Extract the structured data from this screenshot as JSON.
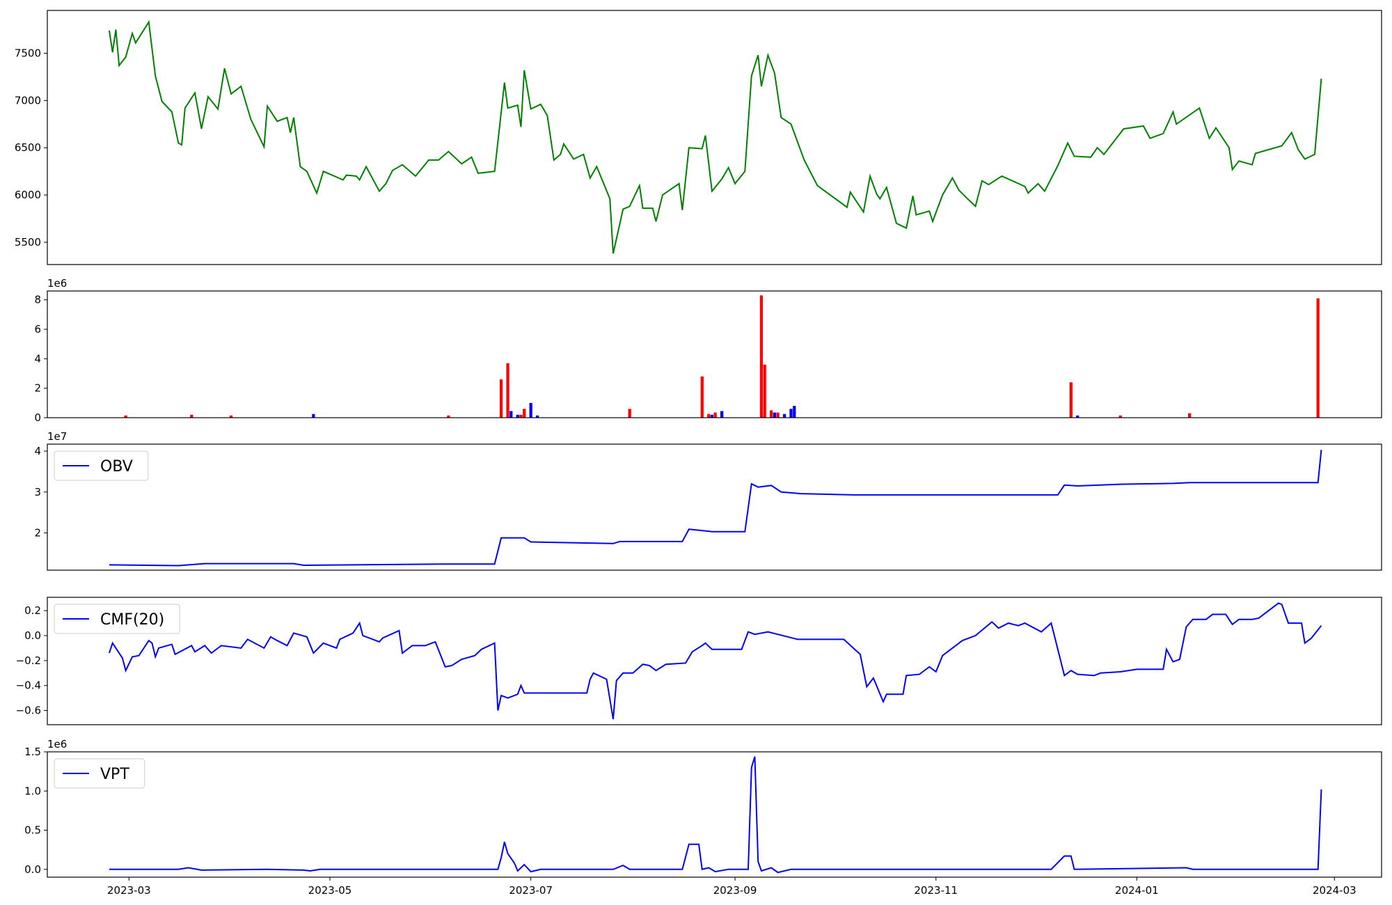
{
  "chart_data": [
    {
      "type": "line",
      "xlim": [
        -24.8,
        380.3
      ],
      "ylim": [
        5264,
        7953
      ],
      "yticks": [
        5500,
        6000,
        6500,
        7000,
        7500
      ],
      "grid": false,
      "x": [
        -6,
        -5,
        -4,
        -3,
        -1,
        1,
        2,
        6,
        8,
        10,
        13,
        15,
        16,
        17,
        20,
        22,
        24,
        27,
        29,
        31,
        34,
        37,
        41,
        42,
        45,
        48,
        49,
        50,
        52,
        54,
        57,
        59,
        65,
        66,
        69,
        70,
        72,
        76,
        78,
        80,
        83,
        87,
        91,
        94,
        97,
        101,
        104,
        106,
        111,
        114,
        115,
        118,
        119,
        120,
        122,
        125,
        127,
        129,
        131,
        132,
        135,
        138,
        140,
        142,
        146,
        147,
        150,
        152,
        155,
        156,
        159,
        160,
        162,
        167,
        168,
        170,
        174,
        175,
        177,
        180,
        182,
        184,
        187,
        189,
        191,
        192,
        194,
        196,
        198,
        201,
        205,
        209,
        218,
        219,
        223,
        225,
        227,
        228,
        230,
        233,
        236,
        238,
        239,
        243,
        244,
        247,
        250,
        252,
        254,
        257,
        259,
        261,
        265,
        272,
        273,
        276,
        278,
        282,
        285,
        287,
        292,
        294,
        296,
        302,
        308,
        310,
        314,
        317,
        318,
        325,
        328,
        330,
        334,
        335,
        337,
        341,
        342,
        350,
        353,
        355,
        357,
        360,
        362
      ],
      "series": [
        {
          "color": "#008000",
          "values": [
            7740,
            7510,
            7750,
            7370,
            7460,
            7710,
            7610,
            7830,
            7260,
            6990,
            6880,
            6550,
            6530,
            6920,
            7080,
            6700,
            7040,
            6910,
            7340,
            7070,
            7150,
            6800,
            6510,
            6940,
            6780,
            6820,
            6660,
            6820,
            6300,
            6250,
            6020,
            6250,
            6160,
            6210,
            6200,
            6160,
            6300,
            6040,
            6120,
            6260,
            6320,
            6200,
            6370,
            6370,
            6460,
            6330,
            6400,
            6230,
            6250,
            7190,
            6920,
            6950,
            6720,
            7320,
            6910,
            6960,
            6840,
            6370,
            6430,
            6540,
            6380,
            6430,
            6180,
            6300,
            5960,
            5380,
            5850,
            5880,
            6100,
            5860,
            5860,
            5720,
            6000,
            6120,
            5840,
            6500,
            6490,
            6630,
            6040,
            6170,
            6290,
            6120,
            6250,
            7260,
            7480,
            7150,
            7480,
            7290,
            6820,
            6750,
            6370,
            6100,
            5870,
            6030,
            5820,
            6200,
            6010,
            5960,
            6080,
            5700,
            5650,
            5990,
            5790,
            5830,
            5720,
            6000,
            6180,
            6050,
            5980,
            5880,
            6150,
            6110,
            6200,
            6090,
            6020,
            6120,
            6040,
            6310,
            6550,
            6410,
            6400,
            6500,
            6430,
            6700,
            6730,
            6600,
            6650,
            6880,
            6750,
            6920,
            6600,
            6710,
            6500,
            6270,
            6360,
            6320,
            6440,
            6520,
            6660,
            6480,
            6380,
            6430,
            7230
          ]
        }
      ]
    },
    {
      "type": "bar",
      "xlim": [
        -24.8,
        380.3
      ],
      "ylim": [
        0,
        8.6
      ],
      "yticks": [
        0,
        2,
        4,
        6,
        8
      ],
      "y_offset_label": "1e6",
      "grid": false,
      "x": [
        -1,
        19,
        31,
        56,
        97,
        113,
        115,
        116,
        118,
        119,
        120,
        122,
        124,
        152,
        174,
        176,
        177,
        178,
        180,
        192,
        193,
        195,
        196,
        197,
        199,
        201,
        202,
        286,
        288,
        301,
        322,
        361
      ],
      "values": [
        0.15,
        0.2,
        0.15,
        0.25,
        0.15,
        2.6,
        3.7,
        0.45,
        0.2,
        0.2,
        0.6,
        1.0,
        0.15,
        0.6,
        2.8,
        0.25,
        0.2,
        0.35,
        0.45,
        8.3,
        3.6,
        0.5,
        0.35,
        0.35,
        0.25,
        0.6,
        0.8,
        2.4,
        0.15,
        0.15,
        0.3,
        8.1
      ],
      "colors": [
        "#ff0000",
        "#ff0000",
        "#ff0000",
        "#0000ff",
        "#ff0000",
        "#ff0000",
        "#ff0000",
        "#0000ff",
        "#0000ff",
        "#ff0000",
        "#ff0000",
        "#0000ff",
        "#0000ff",
        "#ff0000",
        "#ff0000",
        "#ff0000",
        "#0000ff",
        "#ff0000",
        "#0000ff",
        "#ff0000",
        "#ff0000",
        "#ff0000",
        "#0000ff",
        "#ff0000",
        "#0000ff",
        "#0000ff",
        "#0000ff",
        "#ff0000",
        "#0000ff",
        "#ff0000",
        "#ff0000",
        "#ff0000"
      ]
    },
    {
      "type": "line",
      "xlim": [
        -24.8,
        380.3
      ],
      "ylim": [
        1.09,
        4.17
      ],
      "yticks": [
        2,
        3,
        4
      ],
      "y_offset_label": "1e7",
      "grid": false,
      "legend": "upper left",
      "x": [
        -6,
        15,
        23,
        50,
        53,
        96,
        111,
        113,
        120,
        122,
        147,
        149,
        168,
        170,
        175,
        177,
        187,
        189,
        191,
        195,
        198,
        204,
        220,
        282,
        284,
        288,
        301,
        317,
        322,
        361,
        362
      ],
      "series": [
        {
          "name": "OBV",
          "color": "#0000ff",
          "values": [
            1.22,
            1.2,
            1.25,
            1.25,
            1.21,
            1.24,
            1.24,
            1.88,
            1.88,
            1.78,
            1.74,
            1.79,
            1.79,
            2.09,
            2.05,
            2.03,
            2.03,
            3.2,
            3.12,
            3.16,
            3.0,
            2.96,
            2.93,
            2.93,
            3.17,
            3.15,
            3.19,
            3.21,
            3.23,
            3.23,
            4.03
          ]
        }
      ]
    },
    {
      "type": "line",
      "xlim": [
        -24.8,
        380.3
      ],
      "ylim": [
        -0.714,
        0.307
      ],
      "yticks": [
        {
          "value": -0.6,
          "label": "−0.6"
        },
        {
          "value": -0.4,
          "label": "−0.4"
        },
        {
          "value": -0.2,
          "label": "−0.2"
        },
        {
          "value": 0,
          "label": "0.0"
        },
        0.2
      ],
      "grid": false,
      "legend": "upper left",
      "x": [
        -6,
        -5,
        -2,
        -1,
        1,
        3,
        6,
        7,
        8,
        9,
        13,
        14,
        19,
        20,
        23,
        25,
        28,
        34,
        36,
        41,
        43,
        45,
        48,
        50,
        54,
        56,
        59,
        63,
        64,
        68,
        70,
        71,
        76,
        77,
        82,
        83,
        86,
        90,
        93,
        96,
        98,
        101,
        105,
        107,
        111,
        112,
        113,
        115,
        118,
        119,
        120,
        133,
        139,
        140,
        141,
        145,
        147,
        148,
        150,
        153,
        156,
        158,
        160,
        163,
        169,
        171,
        174,
        175,
        177,
        186,
        188,
        190,
        194,
        203,
        217,
        222,
        224,
        226,
        229,
        230,
        232,
        235,
        236,
        240,
        243,
        245,
        247,
        249,
        253,
        255,
        257,
        262,
        264,
        267,
        270,
        272,
        277,
        280,
        284,
        286,
        288,
        293,
        295,
        301,
        306,
        314,
        315,
        317,
        319,
        321,
        323,
        327,
        329,
        333,
        335,
        337,
        341,
        343,
        349,
        350,
        352,
        356,
        357,
        359,
        362
      ],
      "series": [
        {
          "name": "CMF(20)",
          "color": "#0000ff",
          "values": [
            -0.14,
            -0.06,
            -0.18,
            -0.28,
            -0.17,
            -0.16,
            -0.04,
            -0.06,
            -0.17,
            -0.1,
            -0.07,
            -0.15,
            -0.08,
            -0.13,
            -0.08,
            -0.14,
            -0.08,
            -0.1,
            -0.03,
            -0.1,
            -0.01,
            -0.04,
            -0.08,
            0.02,
            -0.01,
            -0.14,
            -0.06,
            -0.1,
            -0.03,
            0.02,
            0.1,
            0.0,
            -0.05,
            -0.02,
            0.04,
            -0.14,
            -0.08,
            -0.08,
            -0.05,
            -0.25,
            -0.24,
            -0.19,
            -0.16,
            -0.11,
            -0.06,
            -0.6,
            -0.48,
            -0.5,
            -0.47,
            -0.4,
            -0.46,
            -0.46,
            -0.46,
            -0.35,
            -0.3,
            -0.35,
            -0.67,
            -0.36,
            -0.3,
            -0.3,
            -0.23,
            -0.24,
            -0.28,
            -0.23,
            -0.22,
            -0.13,
            -0.08,
            -0.06,
            -0.11,
            -0.11,
            0.03,
            0.01,
            0.03,
            -0.03,
            -0.03,
            -0.15,
            -0.41,
            -0.34,
            -0.53,
            -0.47,
            -0.47,
            -0.47,
            -0.32,
            -0.31,
            -0.25,
            -0.29,
            -0.16,
            -0.12,
            -0.04,
            -0.02,
            0.0,
            0.11,
            0.06,
            0.1,
            0.08,
            0.1,
            0.03,
            0.1,
            -0.32,
            -0.28,
            -0.31,
            -0.32,
            -0.3,
            -0.29,
            -0.27,
            -0.27,
            -0.11,
            -0.21,
            -0.19,
            0.07,
            0.13,
            0.13,
            0.17,
            0.17,
            0.09,
            0.13,
            0.13,
            0.14,
            0.26,
            0.25,
            0.1,
            0.1,
            -0.06,
            -0.02,
            0.08
          ]
        }
      ]
    },
    {
      "type": "line",
      "xlim": [
        -24.8,
        380.3
      ],
      "ylim": [
        -0.1,
        1.5
      ],
      "yticks": [
        {
          "value": 0,
          "label": "0.0"
        },
        0.5,
        {
          "value": 1,
          "label": "1.0"
        },
        1.5
      ],
      "y_offset_label": "1e6",
      "grid": false,
      "legend": "upper left",
      "xticks": [
        {
          "value": 0,
          "label": "2023-03"
        },
        {
          "value": 61,
          "label": "2023-05"
        },
        {
          "value": 122,
          "label": "2023-07"
        },
        {
          "value": 184,
          "label": "2023-09"
        },
        {
          "value": 245,
          "label": "2023-11"
        },
        {
          "value": 306,
          "label": "2024-01"
        },
        {
          "value": 366,
          "label": "2024-03"
        }
      ],
      "x": [
        -6,
        15,
        18,
        22,
        42,
        53,
        55,
        58,
        112,
        113,
        114,
        115,
        117,
        118,
        120,
        122,
        125,
        147,
        150,
        152,
        168,
        170,
        173,
        174,
        176,
        178,
        182,
        188,
        189,
        190,
        191,
        192,
        195,
        197,
        201,
        280,
        284,
        286,
        287,
        321,
        323,
        361,
        362
      ],
      "series": [
        {
          "name": "VPT",
          "color": "#0000ff",
          "values": [
            0.0,
            0.0,
            0.02,
            -0.01,
            0.0,
            -0.01,
            -0.02,
            0.0,
            0.0,
            0.15,
            0.35,
            0.2,
            0.08,
            -0.02,
            0.06,
            -0.03,
            0.0,
            0.0,
            0.05,
            0.0,
            0.0,
            0.32,
            0.32,
            0.0,
            0.02,
            -0.03,
            0.0,
            0.0,
            1.3,
            1.44,
            0.1,
            -0.02,
            0.02,
            -0.04,
            0.0,
            0.0,
            0.17,
            0.17,
            0.0,
            0.02,
            0.0,
            0.0,
            1.02
          ]
        }
      ]
    }
  ]
}
